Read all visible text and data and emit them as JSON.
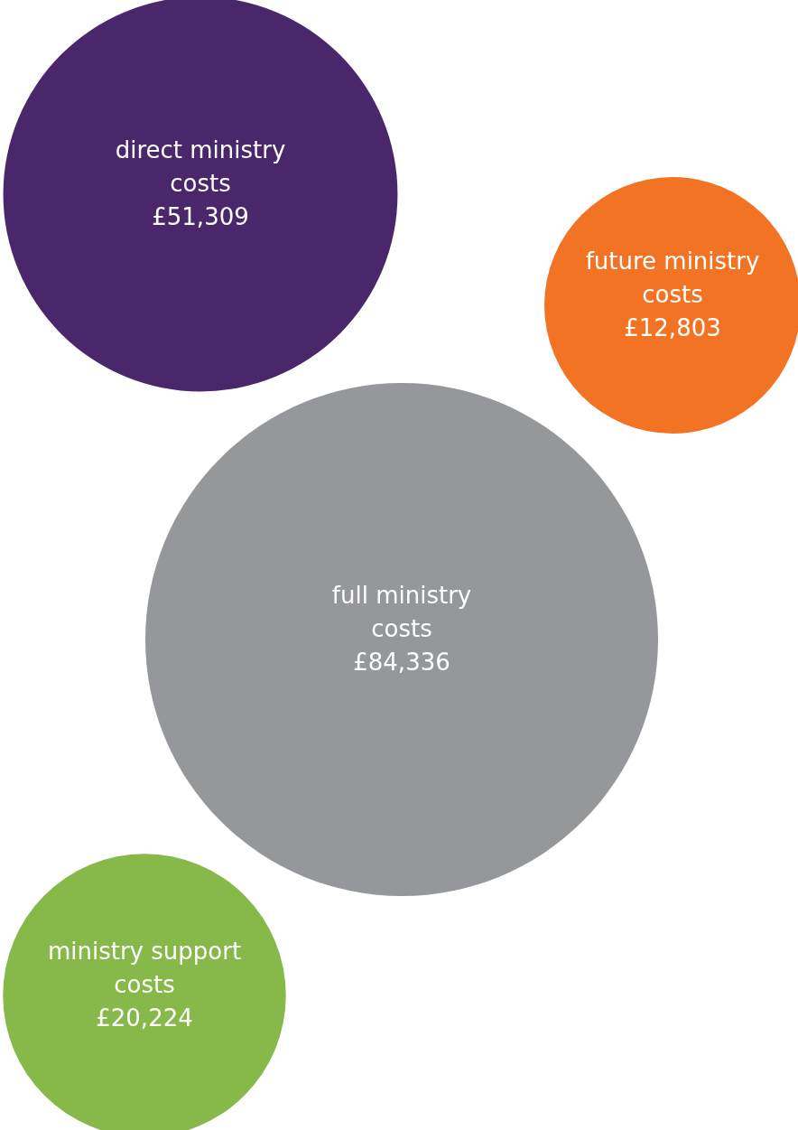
{
  "chart_data": {
    "type": "other",
    "categories": [
      "direct ministry costs",
      "future ministry costs",
      "full ministry costs",
      "ministry support costs"
    ],
    "values": [
      51309,
      12803,
      84336,
      20224
    ],
    "value_labels": [
      "£51,309",
      "£12,803",
      "£84,336",
      "£20,224"
    ],
    "colors": [
      "#4a276a",
      "#f37324",
      "#96979b",
      "#86b94a"
    ]
  }
}
